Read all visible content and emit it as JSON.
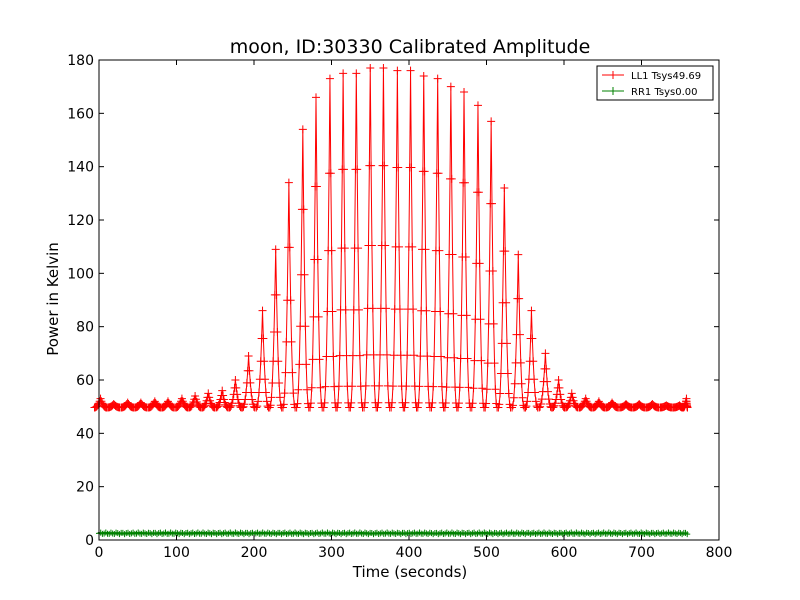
{
  "chart_data": {
    "type": "line",
    "title": "moon, ID:30330 Calibrated Amplitude",
    "xlabel": "Time (seconds)",
    "ylabel": "Power in Kelvin",
    "xlim": [
      0,
      800
    ],
    "ylim": [
      0,
      180
    ],
    "xticks": [
      "0",
      "100",
      "200",
      "300",
      "400",
      "500",
      "600",
      "700",
      "800"
    ],
    "yticks": [
      "0",
      "20",
      "40",
      "60",
      "80",
      "100",
      "120",
      "140",
      "160",
      "180"
    ],
    "grid": false,
    "legend_position": "top-right",
    "series": [
      {
        "name": "LL1 Tsys49.69",
        "color": "#ff0000",
        "marker": "+",
        "baseline": 49.7,
        "peak_period_seconds": 17.4,
        "peaks": [
          {
            "x": 2,
            "y": 53
          },
          {
            "x": 19,
            "y": 51
          },
          {
            "x": 37,
            "y": 51.5
          },
          {
            "x": 54,
            "y": 51.5
          },
          {
            "x": 72,
            "y": 52
          },
          {
            "x": 89,
            "y": 52
          },
          {
            "x": 107,
            "y": 53
          },
          {
            "x": 124,
            "y": 54
          },
          {
            "x": 141,
            "y": 55
          },
          {
            "x": 159,
            "y": 56
          },
          {
            "x": 176,
            "y": 60
          },
          {
            "x": 193,
            "y": 69
          },
          {
            "x": 211,
            "y": 86
          },
          {
            "x": 228,
            "y": 109
          },
          {
            "x": 245,
            "y": 134
          },
          {
            "x": 263,
            "y": 154
          },
          {
            "x": 280,
            "y": 166
          },
          {
            "x": 298,
            "y": 173
          },
          {
            "x": 315,
            "y": 175
          },
          {
            "x": 332,
            "y": 175
          },
          {
            "x": 350,
            "y": 177
          },
          {
            "x": 367,
            "y": 177
          },
          {
            "x": 385,
            "y": 176
          },
          {
            "x": 402,
            "y": 176
          },
          {
            "x": 419,
            "y": 174
          },
          {
            "x": 437,
            "y": 173
          },
          {
            "x": 454,
            "y": 170
          },
          {
            "x": 471,
            "y": 168
          },
          {
            "x": 489,
            "y": 163
          },
          {
            "x": 506,
            "y": 157
          },
          {
            "x": 523,
            "y": 132
          },
          {
            "x": 541,
            "y": 107
          },
          {
            "x": 558,
            "y": 86
          },
          {
            "x": 576,
            "y": 70
          },
          {
            "x": 593,
            "y": 60
          },
          {
            "x": 610,
            "y": 55
          },
          {
            "x": 628,
            "y": 53
          },
          {
            "x": 645,
            "y": 52
          },
          {
            "x": 662,
            "y": 51.5
          },
          {
            "x": 680,
            "y": 51
          },
          {
            "x": 697,
            "y": 51
          },
          {
            "x": 714,
            "y": 51
          },
          {
            "x": 732,
            "y": 50.5
          },
          {
            "x": 749,
            "y": 50.5
          },
          {
            "x": 758,
            "y": 53
          }
        ]
      },
      {
        "name": "RR1 Tsys0.00",
        "color": "#008000",
        "marker": "+",
        "baseline": 2.5,
        "x_range": [
          0,
          760
        ]
      }
    ]
  }
}
